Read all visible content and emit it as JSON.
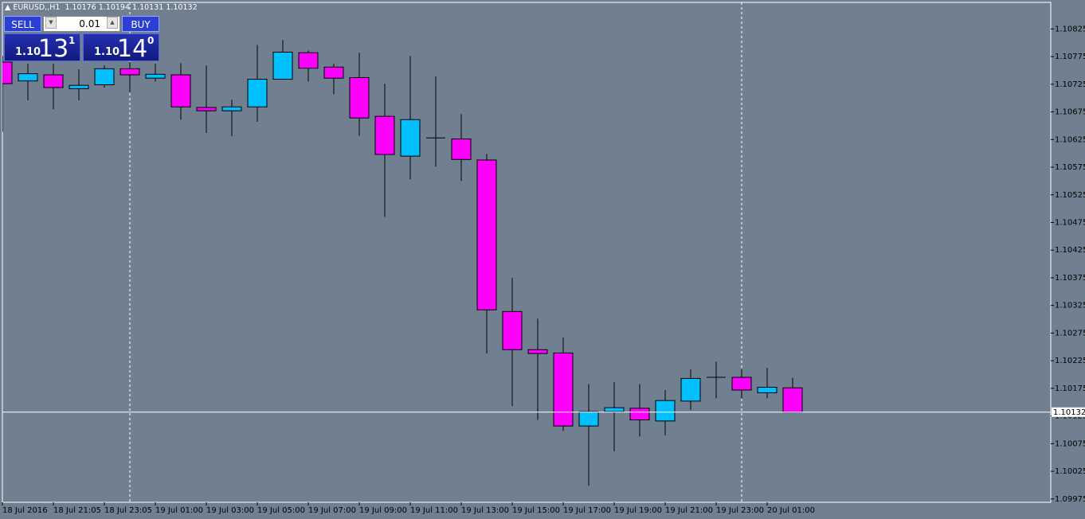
{
  "chart_data": {
    "type": "candlestick",
    "title": "EURUSD,,H1",
    "ohlc_header": [
      1.10176,
      1.10194,
      1.10131,
      1.10132
    ],
    "categories": [
      "18 Jul 2016",
      null,
      "18 Jul 21:05",
      null,
      "18 Jul 23:05",
      null,
      "19 Jul 01:00",
      null,
      "19 Jul 03:00",
      null,
      "19 Jul 05:00",
      null,
      "19 Jul 07:00",
      null,
      "19 Jul 09:00",
      null,
      "19 Jul 11:00",
      null,
      "19 Jul 13:00",
      null,
      "19 Jul 15:00",
      null,
      "19 Jul 17:00",
      null,
      "19 Jul 19:00",
      null,
      "19 Jul 21:00",
      null,
      "19 Jul 23:00",
      null,
      "20 Jul 01:00",
      null
    ],
    "open": [
      1.10765,
      1.10731,
      1.10742,
      1.10717,
      1.10724,
      1.10753,
      1.10736,
      1.10742,
      1.10683,
      1.10677,
      1.10684,
      1.10734,
      1.10782,
      1.10756,
      1.10737,
      1.10667,
      1.10595,
      1.10628,
      1.10626,
      1.10588,
      1.10314,
      1.10245,
      1.10239,
      1.10107,
      1.10133,
      1.10139,
      1.10116,
      1.10152,
      1.10195,
      1.10195,
      1.10167,
      1.10176
    ],
    "high": [
      1.10776,
      1.10762,
      1.10762,
      1.10752,
      1.10759,
      1.10765,
      1.10762,
      1.10763,
      1.10759,
      1.10697,
      1.10796,
      1.10805,
      1.10786,
      1.10762,
      1.10782,
      1.10726,
      1.10776,
      1.10739,
      1.10671,
      1.10599,
      1.10375,
      1.10301,
      1.10267,
      1.10183,
      1.10186,
      1.10183,
      1.10172,
      1.10209,
      1.10223,
      1.10209,
      1.10212,
      1.10194
    ],
    "low": [
      1.10639,
      1.10696,
      1.1068,
      1.10696,
      1.10719,
      1.10711,
      1.1073,
      1.10661,
      1.10637,
      1.10631,
      1.10657,
      1.10734,
      1.1073,
      1.10707,
      1.10632,
      1.10485,
      1.10553,
      1.10576,
      1.1055,
      1.10238,
      1.10143,
      1.10118,
      1.10098,
      1.09999,
      1.10061,
      1.10088,
      1.1009,
      1.10136,
      1.10157,
      1.10157,
      1.10157,
      1.10131
    ],
    "close": [
      1.10726,
      1.10744,
      1.10719,
      1.10723,
      1.10753,
      1.10742,
      1.10743,
      1.10684,
      1.10677,
      1.10684,
      1.10734,
      1.10783,
      1.10754,
      1.10736,
      1.10664,
      1.10598,
      1.10661,
      1.10628,
      1.10589,
      1.10317,
      1.10245,
      1.10238,
      1.10107,
      1.10133,
      1.1014,
      1.10118,
      1.10153,
      1.10193,
      1.10195,
      1.10172,
      1.10177,
      1.10132
    ],
    "up_color": "#00bfff",
    "down_color": "#ff00ff",
    "wick_color": "#000000",
    "current_price": 1.10132,
    "ylim": [
      1.09969,
      1.10873
    ],
    "yticks": [
      1.10825,
      1.10775,
      1.10725,
      1.10675,
      1.10625,
      1.10575,
      1.10525,
      1.10475,
      1.10425,
      1.10375,
      1.10325,
      1.10275,
      1.10225,
      1.10175,
      1.10125,
      1.10075,
      1.10025,
      1.09975
    ],
    "grid": false
  },
  "trade_panel": {
    "sell": "SELL",
    "buy": "BUY",
    "lot": "0.01",
    "bid": {
      "prefix": "1.10",
      "big": "13",
      "sup": "1"
    },
    "ask": {
      "prefix": "1.10",
      "big": "14",
      "sup": "0"
    }
  }
}
